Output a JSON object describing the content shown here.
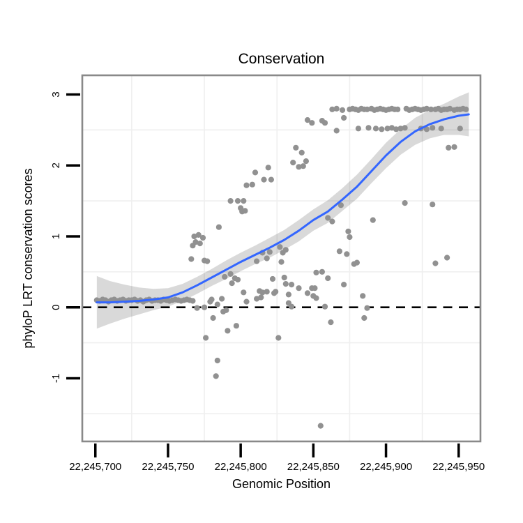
{
  "chart_data": {
    "type": "scatter",
    "title": "Conservation",
    "xlabel": "Genomic Position",
    "ylabel": "phyloP LRT conservation scores",
    "legend": "none",
    "xlim": [
      22245691,
      22245965
    ],
    "ylim": [
      -1.89,
      3.27
    ],
    "x_ticks": [
      {
        "value": 22245700,
        "label": "22,245,700"
      },
      {
        "value": 22245750,
        "label": "22,245,750"
      },
      {
        "value": 22245800,
        "label": "22,245,800"
      },
      {
        "value": 22245850,
        "label": "22,245,850"
      },
      {
        "value": 22245900,
        "label": "22,245,900"
      },
      {
        "value": 22245950,
        "label": "22,245,950"
      }
    ],
    "y_ticks": [
      {
        "value": -1,
        "label": "-1"
      },
      {
        "value": 0,
        "label": "0"
      },
      {
        "value": 1,
        "label": "1"
      },
      {
        "value": 2,
        "label": "2"
      },
      {
        "value": 3,
        "label": "3"
      }
    ],
    "grid_minor_x": [
      22245725,
      22245775,
      22245825,
      22245875,
      22245925
    ],
    "grid_minor_y": [
      -1.5,
      -0.5,
      0.5,
      1.5,
      2.5
    ],
    "reference_line": {
      "y": 0,
      "style": "dashed",
      "color": "#000000"
    },
    "colors": {
      "point": "#919191",
      "smooth_line": "#3366FF",
      "ribbon": "rgba(0,0,0,0.15)",
      "panel_border": "#898989",
      "grid_minor": "#efefef",
      "background": "#ffffff",
      "tick": "#000000"
    },
    "smooth": {
      "name": "loess fit with confidence band",
      "x": [
        22245701,
        22245710,
        22245720,
        22245730,
        22245740,
        22245750,
        22245760,
        22245770,
        22245780,
        22245790,
        22245800,
        22245810,
        22245820,
        22245830,
        22245840,
        22245850,
        22245860,
        22245870,
        22245880,
        22245890,
        22245900,
        22245910,
        22245920,
        22245930,
        22245940,
        22245950,
        22245957
      ],
      "y": [
        0.07,
        0.07,
        0.08,
        0.09,
        0.11,
        0.14,
        0.21,
        0.31,
        0.42,
        0.53,
        0.64,
        0.74,
        0.84,
        0.95,
        1.08,
        1.23,
        1.35,
        1.52,
        1.7,
        1.92,
        2.14,
        2.33,
        2.48,
        2.58,
        2.65,
        2.7,
        2.72
      ],
      "ci_halfwidth": [
        0.37,
        0.3,
        0.24,
        0.19,
        0.15,
        0.13,
        0.12,
        0.12,
        0.12,
        0.13,
        0.13,
        0.13,
        0.14,
        0.14,
        0.15,
        0.15,
        0.16,
        0.16,
        0.17,
        0.17,
        0.18,
        0.18,
        0.19,
        0.2,
        0.22,
        0.27,
        0.31
      ]
    },
    "points": [
      [
        22245701,
        0.1
      ],
      [
        22245703,
        0.09
      ],
      [
        22245705,
        0.11
      ],
      [
        22245707,
        0.1
      ],
      [
        22245709,
        0.08
      ],
      [
        22245711,
        0.1
      ],
      [
        22245713,
        0.11
      ],
      [
        22245715,
        0.09
      ],
      [
        22245717,
        0.1
      ],
      [
        22245719,
        0.11
      ],
      [
        22245721,
        0.09
      ],
      [
        22245723,
        0.1
      ],
      [
        22245725,
        0.1
      ],
      [
        22245727,
        0.11
      ],
      [
        22245729,
        0.09
      ],
      [
        22245731,
        0.1
      ],
      [
        22245733,
        0.08
      ],
      [
        22245735,
        0.1
      ],
      [
        22245737,
        0.11
      ],
      [
        22245739,
        0.09
      ],
      [
        22245741,
        0.1
      ],
      [
        22245743,
        0.1
      ],
      [
        22245745,
        0.09
      ],
      [
        22245747,
        0.11
      ],
      [
        22245749,
        0.1
      ],
      [
        22245751,
        0.09
      ],
      [
        22245753,
        0.1
      ],
      [
        22245755,
        0.11
      ],
      [
        22245757,
        0.1
      ],
      [
        22245759,
        0.09
      ],
      [
        22245761,
        0.1
      ],
      [
        22245763,
        0.11
      ],
      [
        22245765,
        0.1
      ],
      [
        22245767,
        0.09
      ],
      [
        22245770,
        -0.01
      ],
      [
        22245775,
        0.0
      ],
      [
        22245766,
        0.68
      ],
      [
        22245767,
        0.87
      ],
      [
        22245768,
        1.0
      ],
      [
        22245769,
        0.92
      ],
      [
        22245771,
        1.02
      ],
      [
        22245772,
        0.9
      ],
      [
        22245774,
        0.98
      ],
      [
        22245775,
        0.66
      ],
      [
        22245777,
        0.65
      ],
      [
        22245776,
        -0.43
      ],
      [
        22245779,
        0.08
      ],
      [
        22245780,
        0.11
      ],
      [
        22245781,
        -0.15
      ],
      [
        22245783,
        -0.97
      ],
      [
        22245784,
        0.04
      ],
      [
        22245784,
        -0.75
      ],
      [
        22245785,
        1.13
      ],
      [
        22245787,
        0.12
      ],
      [
        22245788,
        -0.06
      ],
      [
        22245790,
        -0.04
      ],
      [
        22245791,
        -0.33
      ],
      [
        22245797,
        -0.26
      ],
      [
        22245789,
        0.43
      ],
      [
        22245793,
        0.47
      ],
      [
        22245796,
        0.41
      ],
      [
        22245794,
        0.34
      ],
      [
        22245798,
        0.39
      ],
      [
        22245793,
        1.5
      ],
      [
        22245798,
        1.5
      ],
      [
        22245802,
        1.5
      ],
      [
        22245800,
        1.4
      ],
      [
        22245801,
        1.35
      ],
      [
        22245803,
        1.36
      ],
      [
        22245804,
        1.72
      ],
      [
        22245808,
        1.73
      ],
      [
        22245810,
        1.9
      ],
      [
        22245816,
        1.8
      ],
      [
        22245821,
        1.8
      ],
      [
        22245819,
        1.97
      ],
      [
        22245802,
        0.21
      ],
      [
        22245804,
        0.08
      ],
      [
        22245811,
        0.12
      ],
      [
        22245813,
        0.23
      ],
      [
        22245814,
        0.14
      ],
      [
        22245815,
        0.21
      ],
      [
        22245818,
        0.22
      ],
      [
        22245823,
        0.2
      ],
      [
        22245824,
        0.22
      ],
      [
        22245811,
        0.65
      ],
      [
        22245815,
        0.77
      ],
      [
        22245818,
        0.69
      ],
      [
        22245820,
        0.78
      ],
      [
        22245827,
        0.85
      ],
      [
        22245828,
        0.64
      ],
      [
        22245829,
        0.77
      ],
      [
        22245831,
        0.81
      ],
      [
        22245822,
        0.4
      ],
      [
        22245830,
        0.42
      ],
      [
        22245831,
        0.33
      ],
      [
        22245835,
        0.32
      ],
      [
        22245833,
        0.18
      ],
      [
        22245833,
        0.06
      ],
      [
        22245835,
        0.01
      ],
      [
        22245826,
        -0.43
      ],
      [
        22245840,
        0.27
      ],
      [
        22245849,
        0.27
      ],
      [
        22245846,
        0.2
      ],
      [
        22245850,
        0.16
      ],
      [
        22245836,
        2.04
      ],
      [
        22245845,
        2.06
      ],
      [
        22245840,
        1.98
      ],
      [
        22245843,
        1.99
      ],
      [
        22245838,
        2.25
      ],
      [
        22245842,
        2.18
      ],
      [
        22245852,
        0.49
      ],
      [
        22245856,
        0.5
      ],
      [
        22245860,
        0.41
      ],
      [
        22245871,
        0.32
      ],
      [
        22245851,
        0.27
      ],
      [
        22245852,
        0.13
      ],
      [
        22245858,
        0.01
      ],
      [
        22245862,
        -0.21
      ],
      [
        22245855,
        -1.67
      ],
      [
        22245884,
        0.16
      ],
      [
        22245887,
        -0.01
      ],
      [
        22245885,
        -0.15
      ],
      [
        22245860,
        1.26
      ],
      [
        22245863,
        1.21
      ],
      [
        22245891,
        1.23
      ],
      [
        22245869,
        1.44
      ],
      [
        22245874,
        1.07
      ],
      [
        22245875,
        0.99
      ],
      [
        22245868,
        0.79
      ],
      [
        22245873,
        0.75
      ],
      [
        22245878,
        0.61
      ],
      [
        22245880,
        0.63
      ],
      [
        22245913,
        1.47
      ],
      [
        22245932,
        1.45
      ],
      [
        22245934,
        0.62
      ],
      [
        22245942,
        0.7
      ],
      [
        22245846,
        2.64
      ],
      [
        22245849,
        2.6
      ],
      [
        22245856,
        2.63
      ],
      [
        22245858,
        2.6
      ],
      [
        22245871,
        2.67
      ],
      [
        22245866,
        2.49
      ],
      [
        22245881,
        2.52
      ],
      [
        22245888,
        2.53
      ],
      [
        22245893,
        2.52
      ],
      [
        22245897,
        2.51
      ],
      [
        22245901,
        2.52
      ],
      [
        22245904,
        2.53
      ],
      [
        22245907,
        2.51
      ],
      [
        22245910,
        2.52
      ],
      [
        22245913,
        2.53
      ],
      [
        22245924,
        2.52
      ],
      [
        22245928,
        2.51
      ],
      [
        22245932,
        2.53
      ],
      [
        22245938,
        2.52
      ],
      [
        22245951,
        2.52
      ],
      [
        22245943,
        2.25
      ],
      [
        22245947,
        2.26
      ],
      [
        22245863,
        2.79
      ],
      [
        22245866,
        2.8
      ],
      [
        22245870,
        2.78
      ],
      [
        22245875,
        2.79
      ],
      [
        22245877,
        2.8
      ],
      [
        22245879,
        2.79
      ],
      [
        22245881,
        2.78
      ],
      [
        22245883,
        2.8
      ],
      [
        22245885,
        2.79
      ],
      [
        22245887,
        2.79
      ],
      [
        22245890,
        2.8
      ],
      [
        22245892,
        2.78
      ],
      [
        22245894,
        2.79
      ],
      [
        22245896,
        2.8
      ],
      [
        22245898,
        2.79
      ],
      [
        22245900,
        2.78
      ],
      [
        22245902,
        2.79
      ],
      [
        22245904,
        2.8
      ],
      [
        22245906,
        2.79
      ],
      [
        22245908,
        2.79
      ],
      [
        22245914,
        2.8
      ],
      [
        22245916,
        2.78
      ],
      [
        22245918,
        2.79
      ],
      [
        22245920,
        2.8
      ],
      [
        22245922,
        2.79
      ],
      [
        22245924,
        2.78
      ],
      [
        22245926,
        2.79
      ],
      [
        22245928,
        2.8
      ],
      [
        22245931,
        2.79
      ],
      [
        22245934,
        2.79
      ],
      [
        22245936,
        2.8
      ],
      [
        22245938,
        2.78
      ],
      [
        22245940,
        2.79
      ],
      [
        22245942,
        2.79
      ],
      [
        22245944,
        2.8
      ],
      [
        22245947,
        2.78
      ],
      [
        22245949,
        2.79
      ],
      [
        22245951,
        2.79
      ],
      [
        22245953,
        2.8
      ],
      [
        22245955,
        2.79
      ]
    ]
  }
}
